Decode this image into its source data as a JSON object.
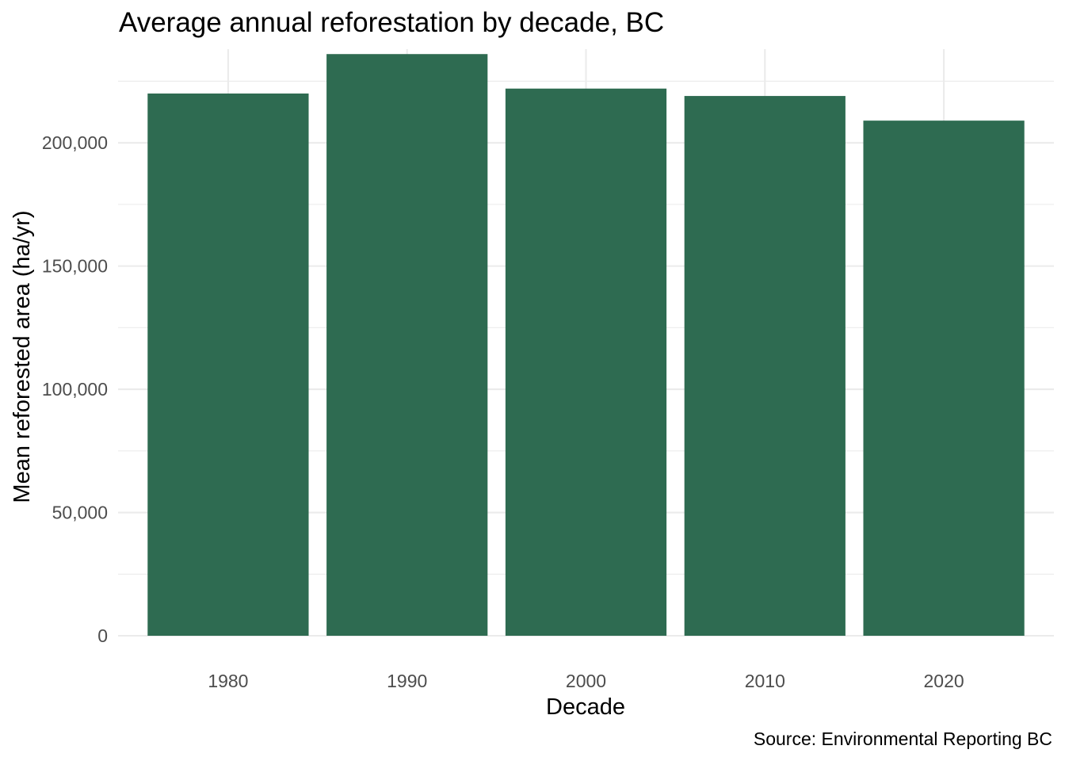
{
  "chart_data": {
    "type": "bar",
    "title": "Average annual reforestation by decade, BC",
    "xlabel": "Decade",
    "ylabel": "Mean reforested area (ha/yr)",
    "caption": "Source: Environmental Reporting BC",
    "categories": [
      "1980",
      "1990",
      "2000",
      "2010",
      "2020"
    ],
    "values": [
      220000,
      236000,
      222000,
      219000,
      209000
    ],
    "ylim": [
      0,
      225000
    ],
    "y_ticks": [
      0,
      50000,
      100000,
      150000,
      200000
    ],
    "y_tick_labels": [
      "0",
      "50,000",
      "100,000",
      "150,000",
      "200,000"
    ],
    "bar_color": "#2e6b51",
    "grid": true,
    "legend": "none"
  }
}
